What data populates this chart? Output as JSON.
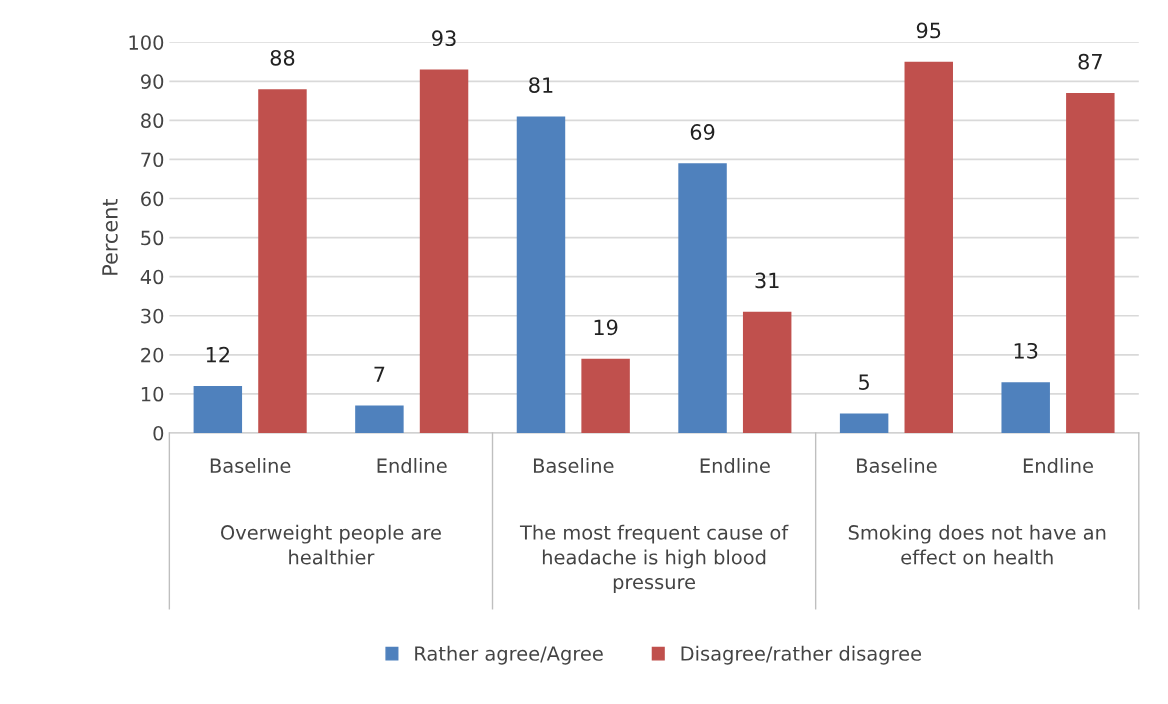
{
  "chart_data": {
    "type": "bar",
    "ylabel": "Percent",
    "categories": [
      "Baseline",
      "Endline",
      "Baseline",
      "Endline",
      "Baseline",
      "Endline"
    ],
    "series": [
      {
        "name": "Rather agree/Agree",
        "color": "#4f81bd",
        "values": [
          12,
          7,
          81,
          69,
          5,
          13
        ]
      },
      {
        "name": "Disagree/rather disagree",
        "color": "#c0504d",
        "values": [
          88,
          93,
          19,
          31,
          95,
          87
        ]
      }
    ],
    "annotations": [
      "Overweight people are healthier",
      "The most frequent cause of headache is high blood pressure",
      "Smoking does not have an effect on health"
    ],
    "ylim": [
      0,
      100
    ],
    "yticks": [
      0,
      10,
      20,
      30,
      40,
      50,
      60,
      70,
      80,
      90,
      100
    ],
    "grid": "y",
    "legend": "bottom",
    "data_labels": true
  }
}
